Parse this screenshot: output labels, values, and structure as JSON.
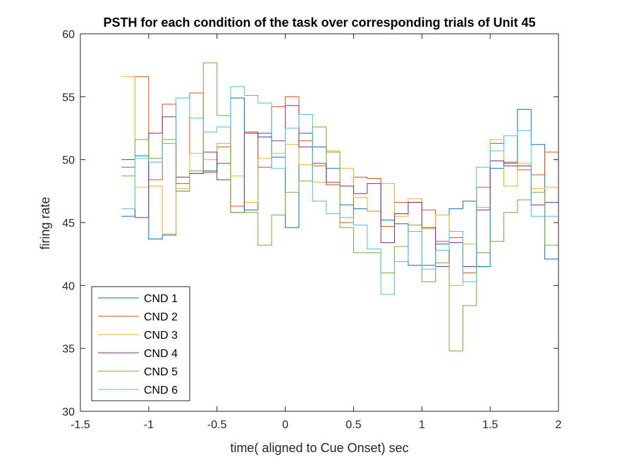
{
  "chart_data": {
    "type": "line",
    "style": "step",
    "title": "PSTH for each condition of the task over corresponding trials of Unit 45",
    "xlabel": "time( aligned to Cue Onset) sec",
    "ylabel": "firing rate",
    "xlim": [
      -1.5,
      2
    ],
    "ylim": [
      30,
      60
    ],
    "xticks": [
      -1.5,
      -1,
      -0.5,
      0,
      0.5,
      1,
      1.5,
      2
    ],
    "xtick_labels": [
      "-1.5",
      "-1",
      "-0.5",
      "0",
      "0.5",
      "1",
      "1.5",
      "2"
    ],
    "yticks": [
      30,
      35,
      40,
      45,
      50,
      55,
      60
    ],
    "ytick_labels": [
      "30",
      "35",
      "40",
      "45",
      "50",
      "55",
      "60"
    ],
    "grid": false,
    "legend_position": "bottom-left",
    "x": [
      -1.2,
      -1.1,
      -1.0,
      -0.9,
      -0.8,
      -0.7,
      -0.6,
      -0.5,
      -0.4,
      -0.3,
      -0.2,
      -0.1,
      0.0,
      0.1,
      0.2,
      0.3,
      0.4,
      0.5,
      0.6,
      0.7,
      0.8,
      0.9,
      1.0,
      1.1,
      1.2,
      1.3,
      1.4,
      1.5,
      1.6,
      1.7,
      1.8,
      1.9,
      2.0
    ],
    "series": [
      {
        "name": "CND 1",
        "color": "#0072BD",
        "values": [
          45.5,
          50.3,
          43.7,
          44.0,
          47.5,
          48.9,
          49.1,
          49.7,
          54.9,
          46.0,
          52.1,
          50.2,
          44.6,
          52.1,
          51.0,
          49.3,
          46.4,
          46.1,
          45.9,
          45.2,
          44.9,
          41.6,
          41.6,
          43.3,
          46.1,
          46.7,
          41.5,
          49.3,
          49.7,
          54.0,
          51.2,
          42.1,
          47.0
        ]
      },
      {
        "name": "CND 2",
        "color": "#D95319",
        "values": [
          49.4,
          56.6,
          48.4,
          54.4,
          48.1,
          55.3,
          49.0,
          51.0,
          46.3,
          52.2,
          49.4,
          54.2,
          55.0,
          51.5,
          49.5,
          48.0,
          45.0,
          48.6,
          48.5,
          44.7,
          46.6,
          46.6,
          46.0,
          43.5,
          43.8,
          41.0,
          47.8,
          51.3,
          49.8,
          49.2,
          48.8,
          50.6,
          47.5
        ]
      },
      {
        "name": "CND 3",
        "color": "#EDB120",
        "values": [
          56.6,
          47.8,
          47.9,
          44.1,
          47.7,
          50.5,
          50.0,
          51.3,
          48.7,
          46.6,
          50.1,
          50.5,
          51.2,
          49.6,
          48.2,
          50.7,
          49.3,
          47.0,
          45.9,
          48.1,
          45.5,
          46.9,
          44.5,
          45.6,
          40.0,
          43.3,
          46.2,
          51.6,
          47.9,
          49.7,
          47.7,
          47.8,
          44.7
        ]
      },
      {
        "name": "CND 4",
        "color": "#7E2F8E",
        "values": [
          50.0,
          45.4,
          52.1,
          53.4,
          48.6,
          48.9,
          50.6,
          48.4,
          45.8,
          52.1,
          51.8,
          51.5,
          54.3,
          51.0,
          49.7,
          48.2,
          47.9,
          47.3,
          48.1,
          43.4,
          45.7,
          46.6,
          44.6,
          41.5,
          43.4,
          41.5,
          46.0,
          49.9,
          49.5,
          49.5,
          46.4,
          46.6,
          46.3
        ]
      },
      {
        "name": "CND 5",
        "color": "#77AC30",
        "values": [
          48.7,
          51.6,
          50.1,
          51.6,
          47.5,
          49.1,
          57.7,
          53.5,
          45.8,
          45.8,
          43.2,
          45.6,
          47.4,
          48.3,
          52.6,
          50.6,
          44.6,
          42.6,
          42.6,
          41.0,
          43.1,
          44.8,
          40.3,
          41.8,
          34.8,
          38.4,
          42.6,
          43.5,
          45.8,
          46.8,
          47.4,
          43.2,
          43.2
        ]
      },
      {
        "name": "CND 6",
        "color": "#4DBEEE",
        "values": [
          46.1,
          50.1,
          49.8,
          51.3,
          54.9,
          53.3,
          52.2,
          52.6,
          55.8,
          55.1,
          54.5,
          49.3,
          52.5,
          53.6,
          46.7,
          45.7,
          45.4,
          44.8,
          42.9,
          39.3,
          41.9,
          44.3,
          41.3,
          42.8,
          44.3,
          40.3,
          49.4,
          50.7,
          51.9,
          52.3,
          45.5,
          45.5,
          45.5
        ]
      }
    ]
  }
}
